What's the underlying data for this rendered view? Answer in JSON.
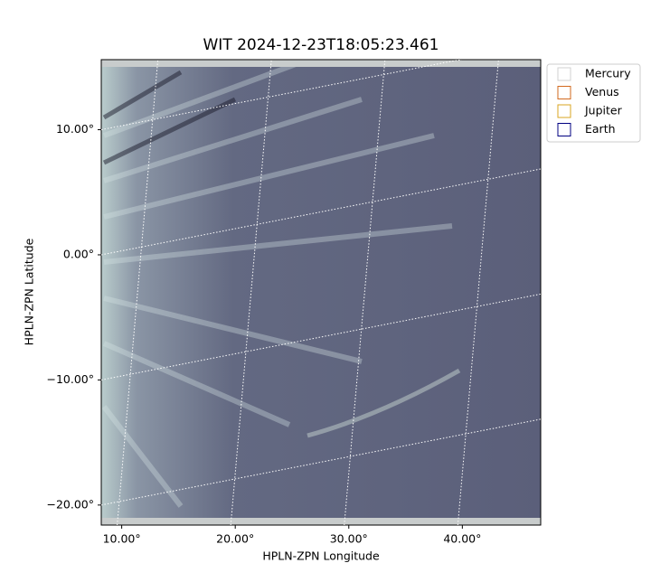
{
  "chart_data": {
    "type": "image",
    "title": "WIT 2024-12-23T18:05:23.461",
    "x_label": "HPLN-ZPN Longitude",
    "y_label": "HPLN-ZPN Latitude",
    "xlim": [
      8.2,
      46.9
    ],
    "ylim": [
      -21.6,
      15.6
    ],
    "xticks": [
      {
        "value": 10,
        "label": "10.00°"
      },
      {
        "value": 20,
        "label": "20.00°"
      },
      {
        "value": 30,
        "label": "30.00°"
      },
      {
        "value": 40,
        "label": "40.00°"
      }
    ],
    "yticks": [
      {
        "value": -20,
        "label": "−20.00°"
      },
      {
        "value": -10,
        "label": "−10.00°"
      },
      {
        "value": 0,
        "label": "0.00°"
      },
      {
        "value": 10,
        "label": "10.00°"
      }
    ],
    "grid": true,
    "legend": "right",
    "series": [
      {
        "name": "Mercury",
        "color": "#d0d0d0"
      },
      {
        "name": "Venus",
        "color": "#d2691e"
      },
      {
        "name": "Jupiter",
        "color": "#daa520"
      },
      {
        "name": "Earth",
        "color": "#000080"
      }
    ]
  }
}
